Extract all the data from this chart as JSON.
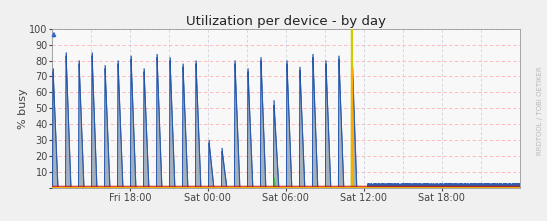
{
  "title": "Utilization per device - by day",
  "ylabel": "% busy",
  "watermark": "RRDTOOL / TOBI OETIKER",
  "background_color": "#f0f0f0",
  "plot_bg_color": "#f8f8f8",
  "grid_color_pink": "#ffb0b0",
  "grid_color_gray": "#c8c8d8",
  "ylim": [
    0,
    100
  ],
  "yticks": [
    0,
    10,
    20,
    30,
    40,
    50,
    60,
    70,
    80,
    90,
    100
  ],
  "tick_labels": [
    "Fri 18:00",
    "Sat 00:00",
    "Sat 06:00",
    "Sat 12:00",
    "Sat 18:00"
  ],
  "tick_positions": [
    6,
    12,
    18,
    24,
    30
  ],
  "total_hours": 36,
  "spike_fill_color": "#7788aa",
  "spike_line_color": "#2255aa",
  "green_color": "#44bb44",
  "yellow_color": "#cccc00",
  "orange_color": "#ffaa00",
  "red_line_color": "#cc1111",
  "blue_line_color": "#2255aa"
}
